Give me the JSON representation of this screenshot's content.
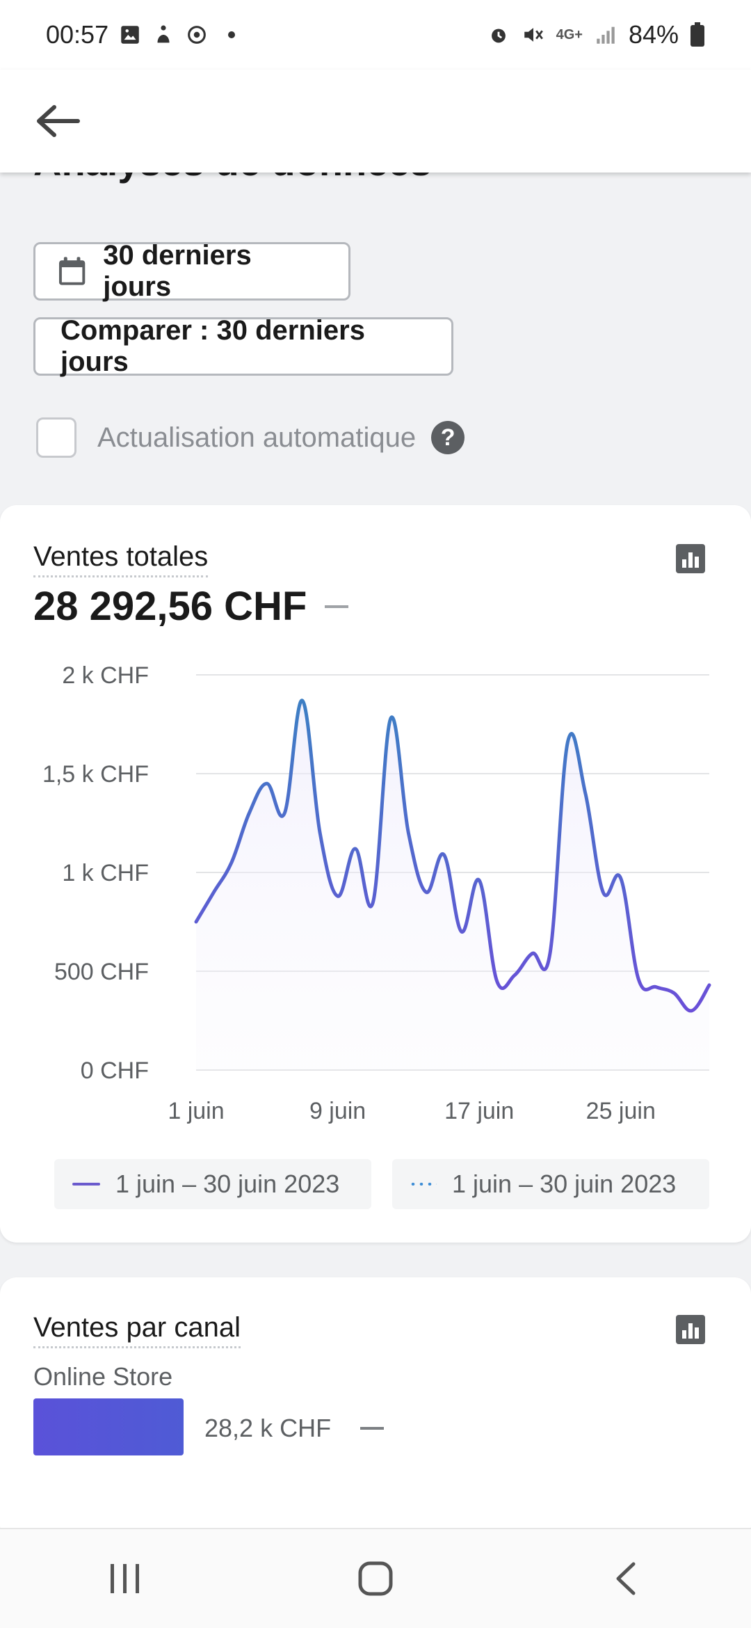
{
  "status_bar": {
    "time": "00:57",
    "battery": "84%",
    "network": "4G+",
    "icons": [
      "image-icon",
      "person-icon",
      "sync-icon",
      "alarm-icon",
      "mute-icon",
      "network-icon",
      "signal-icon",
      "battery-icon"
    ]
  },
  "header": {
    "back_icon": "arrow-left-icon"
  },
  "page": {
    "title": "Analyses de données"
  },
  "filters": {
    "date_range_label": "30 derniers jours",
    "compare_label": "Comparer : 30 derniers jours",
    "auto_refresh_label": "Actualisation automatique",
    "auto_refresh_checked": false,
    "help_glyph": "?"
  },
  "sales_card": {
    "title": "Ventes totales",
    "total": "28 292,56 CHF",
    "legend": [
      {
        "label": "1 juin – 30 juin 2023",
        "style": "solid"
      },
      {
        "label": "1 juin – 30 juin 2023",
        "style": "dotted"
      }
    ]
  },
  "chart_data": {
    "type": "line",
    "title": "",
    "xlabel": "",
    "ylabel": "",
    "ylim": [
      0,
      2000
    ],
    "y_ticks": [
      "0 CHF",
      "500 CHF",
      "1 k CHF",
      "1,5 k CHF",
      "2 k CHF"
    ],
    "y_tick_values": [
      0,
      500,
      1000,
      1500,
      2000
    ],
    "x_tick_labels": [
      "1 juin",
      "9 juin",
      "17 juin",
      "25 juin"
    ],
    "x_tick_days": [
      1,
      9,
      17,
      25
    ],
    "grid": true,
    "series": [
      {
        "name": "1 juin – 30 juin 2023",
        "x": [
          1,
          2,
          3,
          4,
          5,
          6,
          7,
          8,
          9,
          10,
          11,
          12,
          13,
          14,
          15,
          16,
          17,
          18,
          19,
          20,
          21,
          22,
          23,
          24,
          25,
          26,
          27,
          28,
          29,
          30
        ],
        "values": [
          750,
          900,
          1050,
          1300,
          1450,
          1300,
          1870,
          1200,
          880,
          1120,
          850,
          1780,
          1200,
          900,
          1090,
          700,
          960,
          450,
          480,
          590,
          590,
          1660,
          1400,
          900,
          970,
          460,
          420,
          390,
          300,
          430
        ]
      }
    ],
    "colors": {
      "line_start": "#6a4fd8",
      "line_end": "#3d7fc4",
      "grid": "#e3e4e6"
    }
  },
  "channel_card": {
    "title": "Ventes par canal",
    "channel_name": "Online Store",
    "channel_value": "28,2 k CHF",
    "bar_fraction": 1.0
  },
  "nav_bar": {
    "icons": [
      "recent-apps-icon",
      "home-icon",
      "back-nav-icon"
    ]
  }
}
